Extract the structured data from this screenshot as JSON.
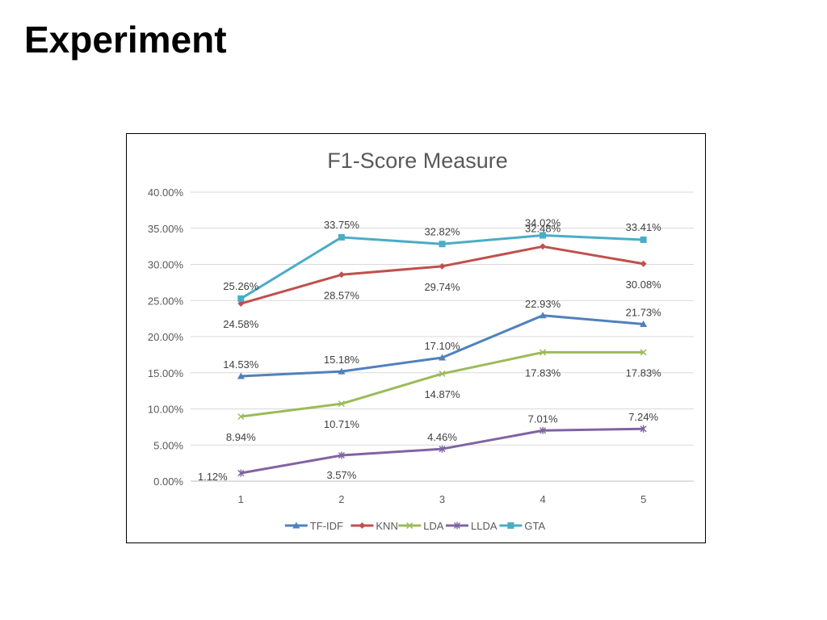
{
  "slide": {
    "title": "Experiment"
  },
  "chart_data": {
    "type": "line",
    "title": "F1-Score Measure",
    "xlabel": "",
    "ylabel": "",
    "categories": [
      "1",
      "2",
      "3",
      "4",
      "5"
    ],
    "ylim": [
      0,
      0.4
    ],
    "yticks": [
      "0.00%",
      "5.00%",
      "10.00%",
      "15.00%",
      "20.00%",
      "25.00%",
      "30.00%",
      "35.00%",
      "40.00%"
    ],
    "grid": true,
    "legend_position": "bottom",
    "series": [
      {
        "name": "TF-IDF",
        "color": "#4f81bd",
        "marker": "triangle",
        "values": [
          0.1453,
          0.1518,
          0.171,
          0.2293,
          0.2173
        ],
        "labels": [
          "14.53%",
          "15.18%",
          "17.10%",
          "22.93%",
          "21.73%"
        ]
      },
      {
        "name": "KNN",
        "color": "#c0504d",
        "marker": "diamond",
        "values": [
          0.2458,
          0.2857,
          0.2974,
          0.3248,
          0.3008
        ],
        "labels": [
          "24.58%",
          "28.57%",
          "29.74%",
          "32.48%",
          "30.08%"
        ]
      },
      {
        "name": "LDA",
        "color": "#9bbb59",
        "marker": "x",
        "values": [
          0.0894,
          0.1071,
          0.1487,
          0.1783,
          0.1783
        ],
        "labels": [
          "8.94%",
          "10.71%",
          "14.87%",
          "17.83%",
          "17.83%"
        ]
      },
      {
        "name": "LLDA",
        "color": "#8064a2",
        "marker": "star",
        "values": [
          0.0112,
          0.0357,
          0.0446,
          0.0701,
          0.0724
        ],
        "labels": [
          "1.12%",
          "3.57%",
          "4.46%",
          "7.01%",
          "7.24%"
        ]
      },
      {
        "name": "GTA",
        "color": "#4bacc6",
        "marker": "square",
        "values": [
          0.2526,
          0.3375,
          0.3282,
          0.3402,
          0.3341
        ],
        "labels": [
          "25.26%",
          "33.75%",
          "32.82%",
          "34.02%",
          "33.41%"
        ]
      }
    ]
  }
}
